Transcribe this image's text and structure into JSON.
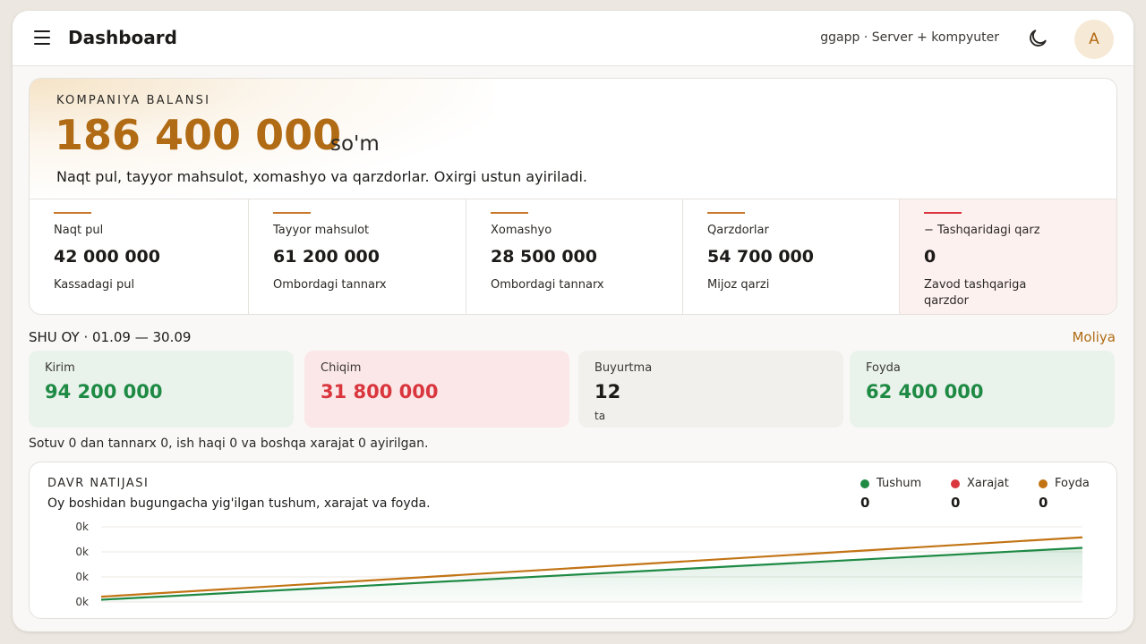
{
  "header": {
    "title": "Dashboard",
    "context": "ggapp · Server + kompyuter",
    "avatar_initial": "A"
  },
  "balance": {
    "label": "KOMPANIYA BALANSI",
    "amount": "186 400 000",
    "currency": "so'm",
    "description": "Naqt pul, tayyor mahsulot, xomashyo va qarzdorlar. Oxirgi ustun ayiriladi.",
    "components": [
      {
        "label": "Naqt pul",
        "value": "42 000 000",
        "note": "Kassadagi pul"
      },
      {
        "label": "Tayyor mahsulot",
        "value": "61 200 000",
        "note": "Ombordagi tannarx"
      },
      {
        "label": "Xomashyo",
        "value": "28 500 000",
        "note": "Ombordagi tannarx"
      },
      {
        "label": "Qarzdorlar",
        "value": "54 700 000",
        "note": "Mijoz qarzi"
      },
      {
        "label": "− Tashqaridagi qarz",
        "value": "0",
        "note": "Zavod tashqariga qarzdor"
      }
    ]
  },
  "month": {
    "label": "SHU OY · 01.09 — 30.09",
    "link": "Moliya",
    "stats": [
      {
        "label": "Kirim",
        "value": "94 200 000"
      },
      {
        "label": "Chiqim",
        "value": "31 800 000"
      },
      {
        "label": "Buyurtma",
        "value": "12",
        "unit": "ta"
      },
      {
        "label": "Foyda",
        "value": "62 400 000"
      }
    ],
    "note": "Sotuv 0 dan tannarx 0, ish haqi 0 va boshqa xarajat 0 ayirilgan."
  },
  "colors": {
    "accent": "#b06b14",
    "income": "#1e8a44",
    "expense": "#d9363e",
    "profit": "#c27415"
  },
  "chart_data": {
    "type": "line",
    "title": "DAVR NATIJASI",
    "subtitle": "Oy boshidan bugungacha yig'ilgan tushum, xarajat va foyda.",
    "y_tick_labels": [
      "0k",
      "0k",
      "0k",
      "0k"
    ],
    "legend_placement": "top-right",
    "grid": true,
    "series": [
      {
        "name": "Tushum",
        "color": "#1e8a44",
        "total": "0",
        "values": [
          0.03,
          0.72
        ]
      },
      {
        "name": "Xarajat",
        "color": "#d9363e",
        "total": "0",
        "values": []
      },
      {
        "name": "Foyda",
        "color": "#c27415",
        "total": "0",
        "values": [
          0.07,
          0.86
        ]
      }
    ]
  }
}
